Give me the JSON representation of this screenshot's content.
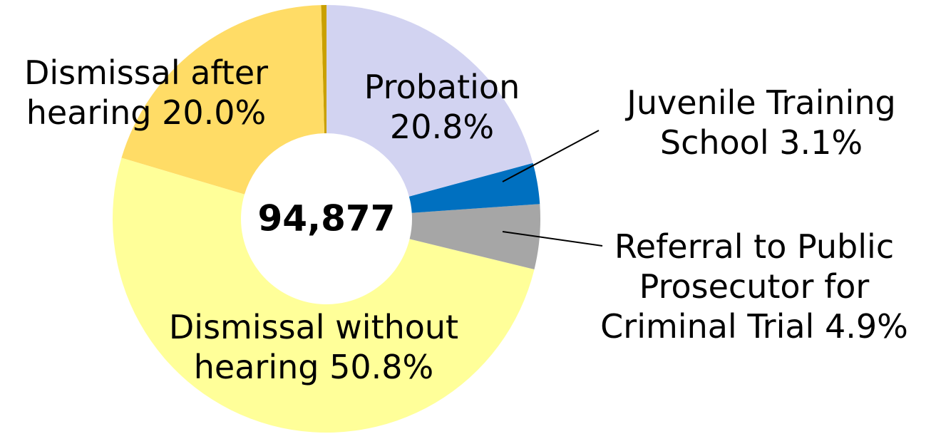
{
  "chart_data": {
    "type": "donut",
    "labels": [
      [
        "Probation",
        "20.8%"
      ],
      [
        "Juvenile Training",
        "School 3.1%"
      ],
      [
        "Referral to Public",
        "Prosecutor for",
        "Criminal Trial 4.9%"
      ],
      [
        "Dismissal without",
        "hearing 50.8%"
      ],
      [
        "Dismissal after",
        "hearing 20.0%"
      ],
      null
    ],
    "values": [
      20.8,
      3.1,
      4.9,
      50.8,
      20.0,
      0.4
    ],
    "colors": [
      "#d2d3f1",
      "#0070c0",
      "#a6a6a6",
      "#ffff99",
      "#ffdc66",
      "#c9a000"
    ],
    "total": {
      "value": 94877,
      "label": "94,877"
    }
  }
}
